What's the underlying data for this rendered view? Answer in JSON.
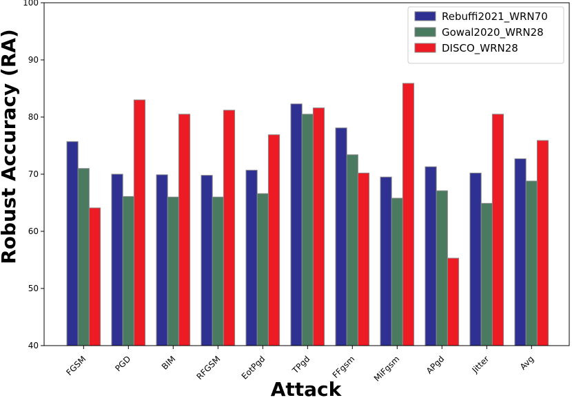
{
  "chart_data": {
    "type": "bar",
    "title": "",
    "xlabel": "Attack",
    "ylabel": "Robust Accuracy (RA)",
    "ylim": [
      40,
      100
    ],
    "yticks": [
      40,
      50,
      60,
      70,
      80,
      90,
      100
    ],
    "grid": false,
    "legend_position": "top-right",
    "categories": [
      "FGSM",
      "PGD",
      "BIM",
      "RFGSM",
      "EotPgd",
      "TPgd",
      "FFgsm",
      "MiFgsm",
      "APgd",
      "Jitter",
      "Avg"
    ],
    "series": [
      {
        "name": "Rebuffi2021_WRN70",
        "color": "#2e3192",
        "values": [
          75.7,
          70.0,
          69.9,
          69.8,
          70.7,
          82.3,
          78.1,
          69.5,
          71.3,
          70.2,
          72.7
        ]
      },
      {
        "name": "Gowal2020_WRN28",
        "color": "#4a7b61",
        "values": [
          71.0,
          66.1,
          66.0,
          66.0,
          66.6,
          80.5,
          73.4,
          65.8,
          67.1,
          64.9,
          68.8
        ]
      },
      {
        "name": "DISCO_WRN28",
        "color": "#ed1c24",
        "values": [
          64.1,
          83.0,
          80.5,
          81.2,
          76.9,
          81.6,
          70.2,
          85.9,
          55.3,
          80.5,
          75.9
        ]
      }
    ]
  }
}
